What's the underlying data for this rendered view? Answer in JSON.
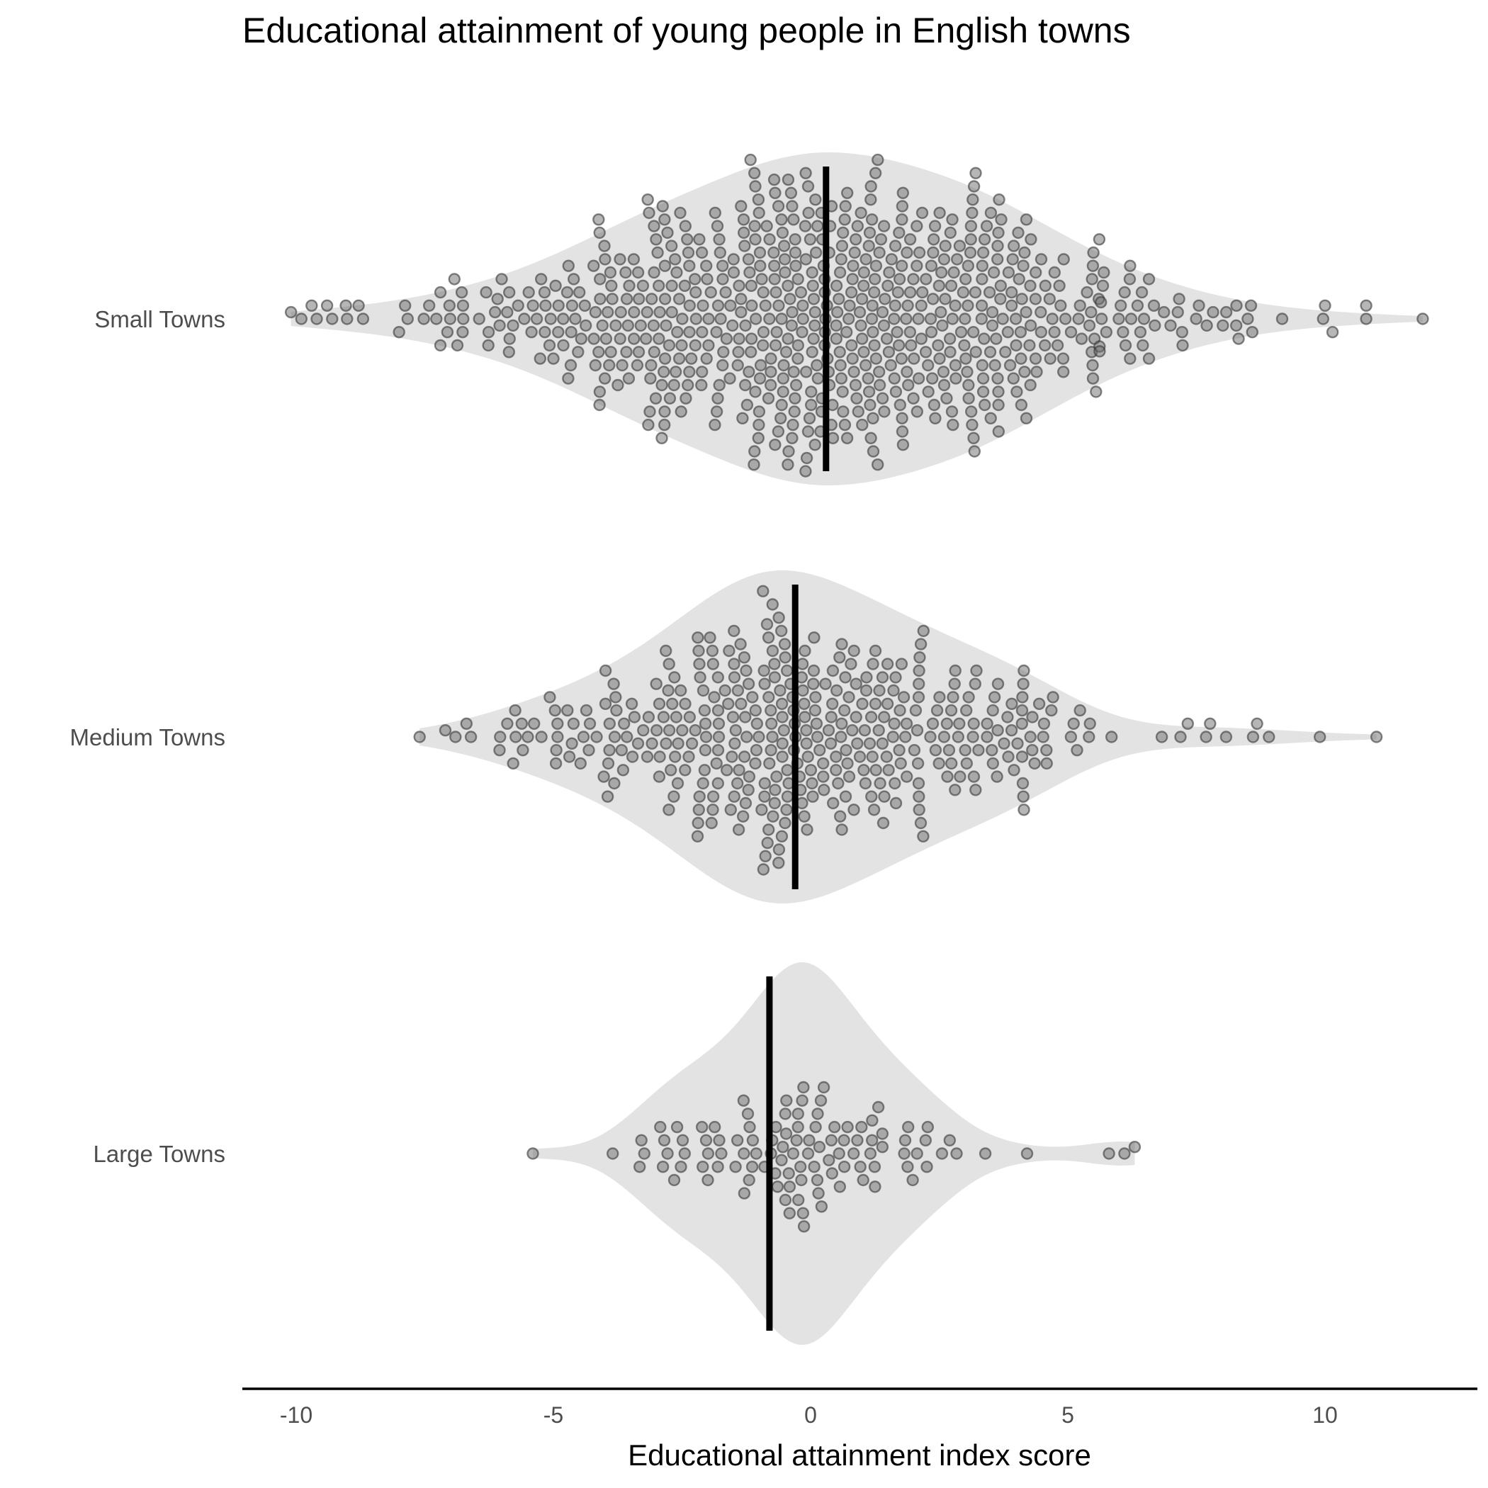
{
  "chart_data": {
    "type": "violin-swarm",
    "title": "Educational attainment of young people in English towns",
    "xlabel": "Educational attainment index score",
    "ylabel": "",
    "xlim": [
      -11,
      13
    ],
    "x_ticks": [
      -10,
      -5,
      0,
      5,
      10
    ],
    "x_tick_labels": [
      "-10",
      "-5",
      "0",
      "5",
      "10"
    ],
    "grid": false,
    "colors": {
      "violin_fill": "#e3e3e3",
      "point_fill": "#8c8c8c",
      "median_line": "#000000",
      "label_text": "#4d4d4d"
    },
    "groups": [
      {
        "name": "Small Towns",
        "n_points": 700,
        "median": 0.3,
        "min": -10.1,
        "max": 11.9,
        "outlier_points": [
          -10.1,
          -9.9,
          -9.7,
          -9.6,
          -9.4,
          -9.3,
          -8.7,
          -8.0,
          10.0,
          10.8,
          10.8,
          11.9
        ]
      },
      {
        "name": "Medium Towns",
        "n_points": 400,
        "median": -0.3,
        "min": -7.6,
        "max": 11.0,
        "outlier_points": [
          -7.6,
          -7.1,
          8.6,
          9.9,
          11.0
        ]
      },
      {
        "name": "Large Towns",
        "n_points": 110,
        "median": -0.8,
        "min": -5.4,
        "max": 6.3,
        "outlier_points": [
          -5.4,
          5.8,
          6.1,
          6.3
        ]
      }
    ]
  }
}
